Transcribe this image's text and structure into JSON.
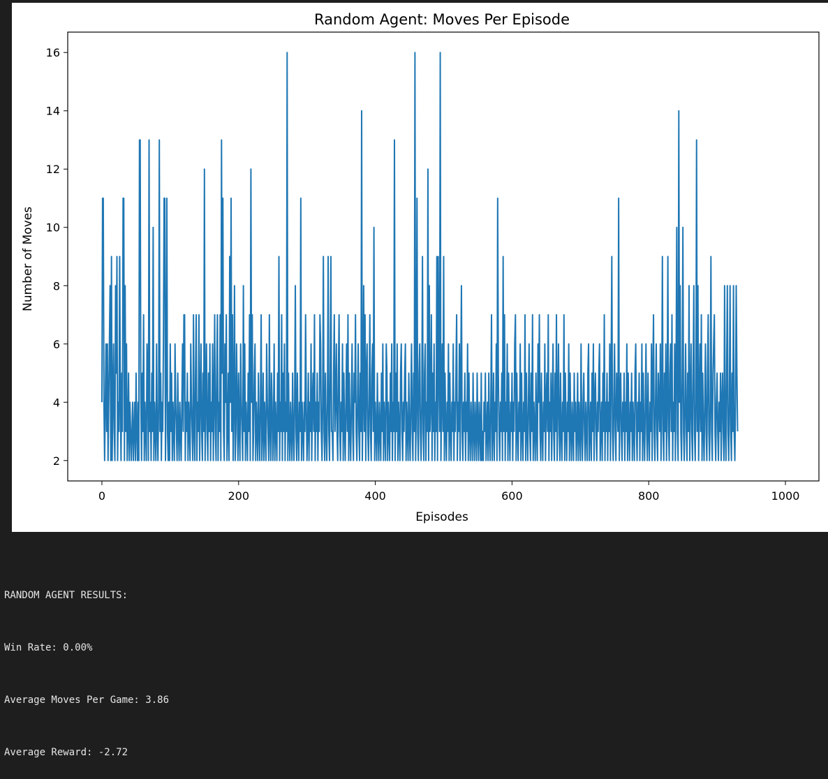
{
  "chart_data": {
    "type": "line",
    "title": "Random Agent: Moves Per Episode",
    "xlabel": "Episodes",
    "ylabel": "Number of Moves",
    "xlim": [
      -50,
      1049
    ],
    "ylim": [
      1.3,
      16.7
    ],
    "xticks": [
      0,
      200,
      400,
      600,
      800,
      1000
    ],
    "yticks": [
      2,
      4,
      6,
      8,
      10,
      12,
      14,
      16
    ],
    "grid": false,
    "legend": "none",
    "series_color": "#1f77b4",
    "series": [
      {
        "note": "1000 episodes (0-999), values read from plot; peaks preserved",
        "values_compact": "4,11,11,4,2,4,6,3,6,2,4,6,8,2,9,2,4,6,3,2,8,5,9,2,4,3,9,4,2,5,3,11,11,2,8,3,6,2,3,5,2,4,3,2,3,4,2,3,4,2,5,3,2,4,2,13,13,4,2,5,3,7,2,4,3,2,6,5,2,13,3,4,2,5,3,10,2,4,3,2,6,3,2,4,13,3,5,2,4,3,6,11,11,2,5,11,3,2,4,2,6,3,5,2,4,3,2,6,4,3,2,5,3,2,4,3,2,4,6,3,7,7,2,4,3,5,2,4,3,2,6,4,3,2,7,3,2,5,7,2,4,3,7,2,4,6,3,2,5,3,12,2,4,6,3,2,5,3,6,2,4,3,6,2,4,7,3,2,5,7,2,4,3,7,2,13,5,11,3,2,6,4,7,2,3,5,2,9,4,11,3,7,2,4,8,2,3,6,4,2,5,3,2,6,4,3,2,8,3,6,2,4,3,2,5,3,7,2,12,4,7,2,3,5,6,2,4,3,2,5,3,2,4,7,2,3,5,2,4,3,2,6,4,3,2,7,3,2,5,4,2,3,6,2,4,3,2,5,3,9,2,4,3,7,2,5,3,6,2,4,3,16,2,5,3,2,4,3,2,5,3,2,4,8,3,2,5,3,2,4,3,11,2,4,3,2,4,3,7,4,2,3,5,2,4,3,6,2,4,5,3,7,2,4,3,5,2,4,3,7,6,3,2,4,9,3,2,5,3,2,4,9,3,2,5,9,3,3,2,5,7,3,4,6,3,2,5,7,3,2,4,3,6,2,5,3,2,4,6,3,7,2,5,3,2,4,6,3,2,5,4,7,3,2,4,6,3,2,5,3,14,2,4,8,3,7,2,5,6,3,2,4,7,3,2,5,6,3,10,2,4,3,2,5,3,2,4,3,2,5,3,6,2,4,3,2,6,5,2,4,3,2,5,3,6,2,4,3,13,2,5,3,6,2,4,3,2,5,6,3,2,4,3,5,6,2,4,3,2,5,3,2,4,6,3,2,5,3,16,2,4,11,3,2,5,6,3,2,4,9,3,2,5,6,2,4,3,12,2,8,3,4,7,2,5,3,6,2,4,3,9,2,9,5,3,16,2,4,6,3,9,2,5,3,2,4,3,6,2,5,3,2,4,3,6,2,4,3,5,7,2,4,3,6,2,5,8,3,2,4,3,5,2,4,3,6,2,5,3,2,4,3,2,5,3,2,4,3,2,5,3,2,4,3,2,5,2,3,2,4,3,5,2,3,4,2,5,3,2,4,7,2,3,5,2,4,3,6,2,11,5,3,2,4,3,5,2,9,3,7,2,4,3,6,2,5,3,2,4,3,5,2,4,3,6,7,2,5,3,2,4,3,6,2,5,3,2,4,3,7,2,5,3,2,4,6,3,2,5,3,7,2,4,3,2,5,3,2,6,4,7,3,2,5,3,2,4,3,6,2,4,5,3,7,2,4,3,5,2,4,6,3,2,5,3,7,2,4,6,3,2,5,3,2,4,3,7,2,5,3,2,4,3,6,2,5,3,2,4,3,2,5,3,4,2,3,5,2,4,3,2,6,3,2,4,5,3,2,4,3,2,5,6,2,3,4,2,5,3,6,2,4,5,3,2,4,3,5,6,2,3,4,2,5,3,7,2,4,3,5,2,4,3,6,2,5,9,3,2,4,6,3,2,5,4,3,11,2,4,5,3,2,4,3,5,2,4,3,6,2,5,3,2,4,3,5,2,4,3,2,5,6,3,2,4,3,5,2,4,3,6,2,5,3,2,4,6,3,2,5,3,2,4,3,6,2,5,7,3,2,4,6,3,2,5,4,3,6,2,4,9,3,2,5,3,6,2,4,9,3,2,5,6,3,7,2,4,3,6,2,5,10,3,2,14,4,8,3,2,5,10,3,2,4,6,3,2,5,3,8,2,4,6,3,2,5,8,3,2,4,13,3,8,2,4,6,3,7,2,5,3,2,4,6,3,2,5,7,3,2,4,9,3,2,5,6,7,3,2,4,5,3,2,4,3,5,2,4,5,3,2,8,3,2,5,8,3,2,4,8,3,2,5,3,8,3,2,4,8,5,3"
      }
    ]
  },
  "output": {
    "lines": [
      "RANDOM AGENT RESULTS:",
      "Win Rate: 0.00%",
      "Average Moves Per Game: 3.86",
      "Average Reward: -2.72"
    ]
  }
}
